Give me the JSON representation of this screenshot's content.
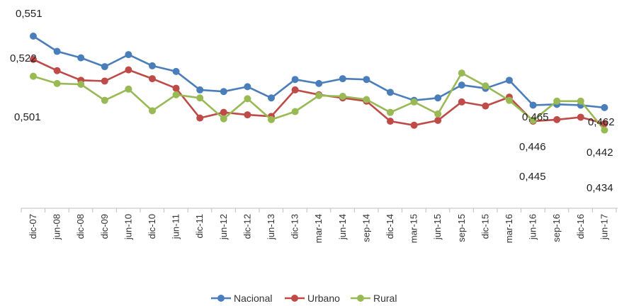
{
  "chart_data": {
    "type": "line",
    "categories": [
      "dic-07",
      "jun-08",
      "dic-08",
      "dic-09",
      "jun-10",
      "dic-10",
      "jun-11",
      "dic-11",
      "jun-12",
      "dic-12",
      "jun-13",
      "dic-13",
      "mar-14",
      "jun-14",
      "sep-14",
      "dic-14",
      "mar-15",
      "jun-15",
      "sep-15",
      "dic-15",
      "mar-16",
      "jun-16",
      "sep-16",
      "dic-16",
      "jun-17"
    ],
    "series": [
      {
        "name": "Nacional",
        "color": "#4a7ebb",
        "values": [
          0.551,
          0.532,
          0.524,
          0.513,
          0.528,
          0.514,
          0.507,
          0.484,
          0.482,
          0.488,
          0.474,
          0.497,
          0.492,
          0.498,
          0.497,
          0.481,
          0.471,
          0.474,
          0.49,
          0.486,
          0.496,
          0.465,
          0.466,
          0.465,
          0.462
        ]
      },
      {
        "name": "Urbano",
        "color": "#be4b48",
        "values": [
          0.522,
          0.508,
          0.496,
          0.495,
          0.509,
          0.498,
          0.486,
          0.449,
          0.456,
          0.453,
          0.451,
          0.484,
          0.478,
          0.474,
          0.47,
          0.445,
          0.44,
          0.446,
          0.469,
          0.464,
          0.475,
          0.445,
          0.447,
          0.45,
          0.442
        ]
      },
      {
        "name": "Rural",
        "color": "#98b954",
        "values": [
          0.501,
          0.492,
          0.491,
          0.471,
          0.485,
          0.458,
          0.478,
          0.474,
          0.448,
          0.473,
          0.447,
          0.457,
          0.477,
          0.476,
          0.472,
          0.456,
          0.469,
          0.454,
          0.505,
          0.489,
          0.471,
          0.446,
          0.47,
          0.47,
          0.434
        ]
      }
    ],
    "data_labels": [
      {
        "text": "0,551"
      },
      {
        "text": "0,522"
      },
      {
        "text": "0,501"
      },
      {
        "text": "0,465"
      },
      {
        "text": "0,446"
      },
      {
        "text": "0,445"
      },
      {
        "text": "0,462"
      },
      {
        "text": "0,442"
      },
      {
        "text": "0,434"
      }
    ],
    "ylim": [
      0.4,
      0.58
    ],
    "grid": false,
    "legend_position": "bottom"
  }
}
